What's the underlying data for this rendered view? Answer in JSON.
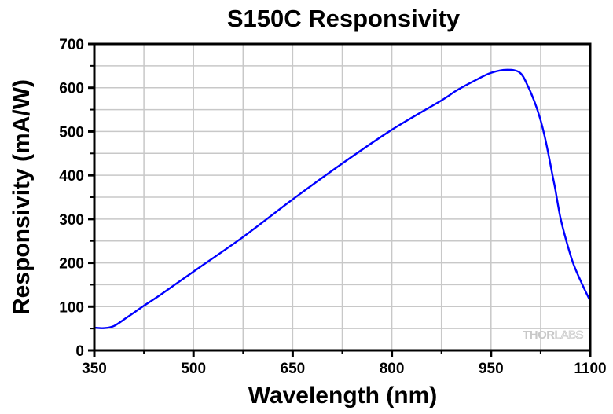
{
  "chart_data": {
    "type": "line",
    "title": "S150C Responsivity",
    "xlabel": "Wavelength (nm)",
    "ylabel": "Responsivity (mA/W)",
    "xlim": [
      350,
      1100
    ],
    "ylim": [
      0,
      700
    ],
    "xticks": [
      350,
      500,
      650,
      800,
      950,
      1100
    ],
    "xtick_labels": [
      "350",
      "500",
      "650",
      "800",
      "950",
      "1100"
    ],
    "x_minor_step": 75,
    "yticks": [
      0,
      100,
      200,
      300,
      400,
      500,
      600,
      700
    ],
    "ytick_labels": [
      "0",
      "100",
      "200",
      "300",
      "400",
      "500",
      "600",
      "700"
    ],
    "y_minor_step": 50,
    "grid": true,
    "legend": "none",
    "watermark": {
      "text_bold": "THOR",
      "text_light": "LABS",
      "position": "bottom-right"
    },
    "colors": {
      "line": "#0000ff",
      "grid": "#c8c8c8",
      "axis": "#000000"
    },
    "series": [
      {
        "name": "S150C",
        "x": [
          350,
          365,
          380,
          400,
          425,
          450,
          500,
          575,
          650,
          725,
          800,
          875,
          897,
          925,
          950,
          975,
          994,
          1006,
          1016,
          1024,
          1031,
          1037,
          1043,
          1047,
          1055,
          1066,
          1075,
          1087,
          1100
        ],
        "y": [
          52,
          51,
          56,
          76,
          102,
          127,
          180,
          259,
          345,
          427,
          504,
          571,
          593,
          616,
          634,
          641,
          634,
          603,
          567,
          531,
          490,
          447,
          400,
          370,
          303,
          239,
          196,
          154,
          113
        ]
      }
    ]
  }
}
